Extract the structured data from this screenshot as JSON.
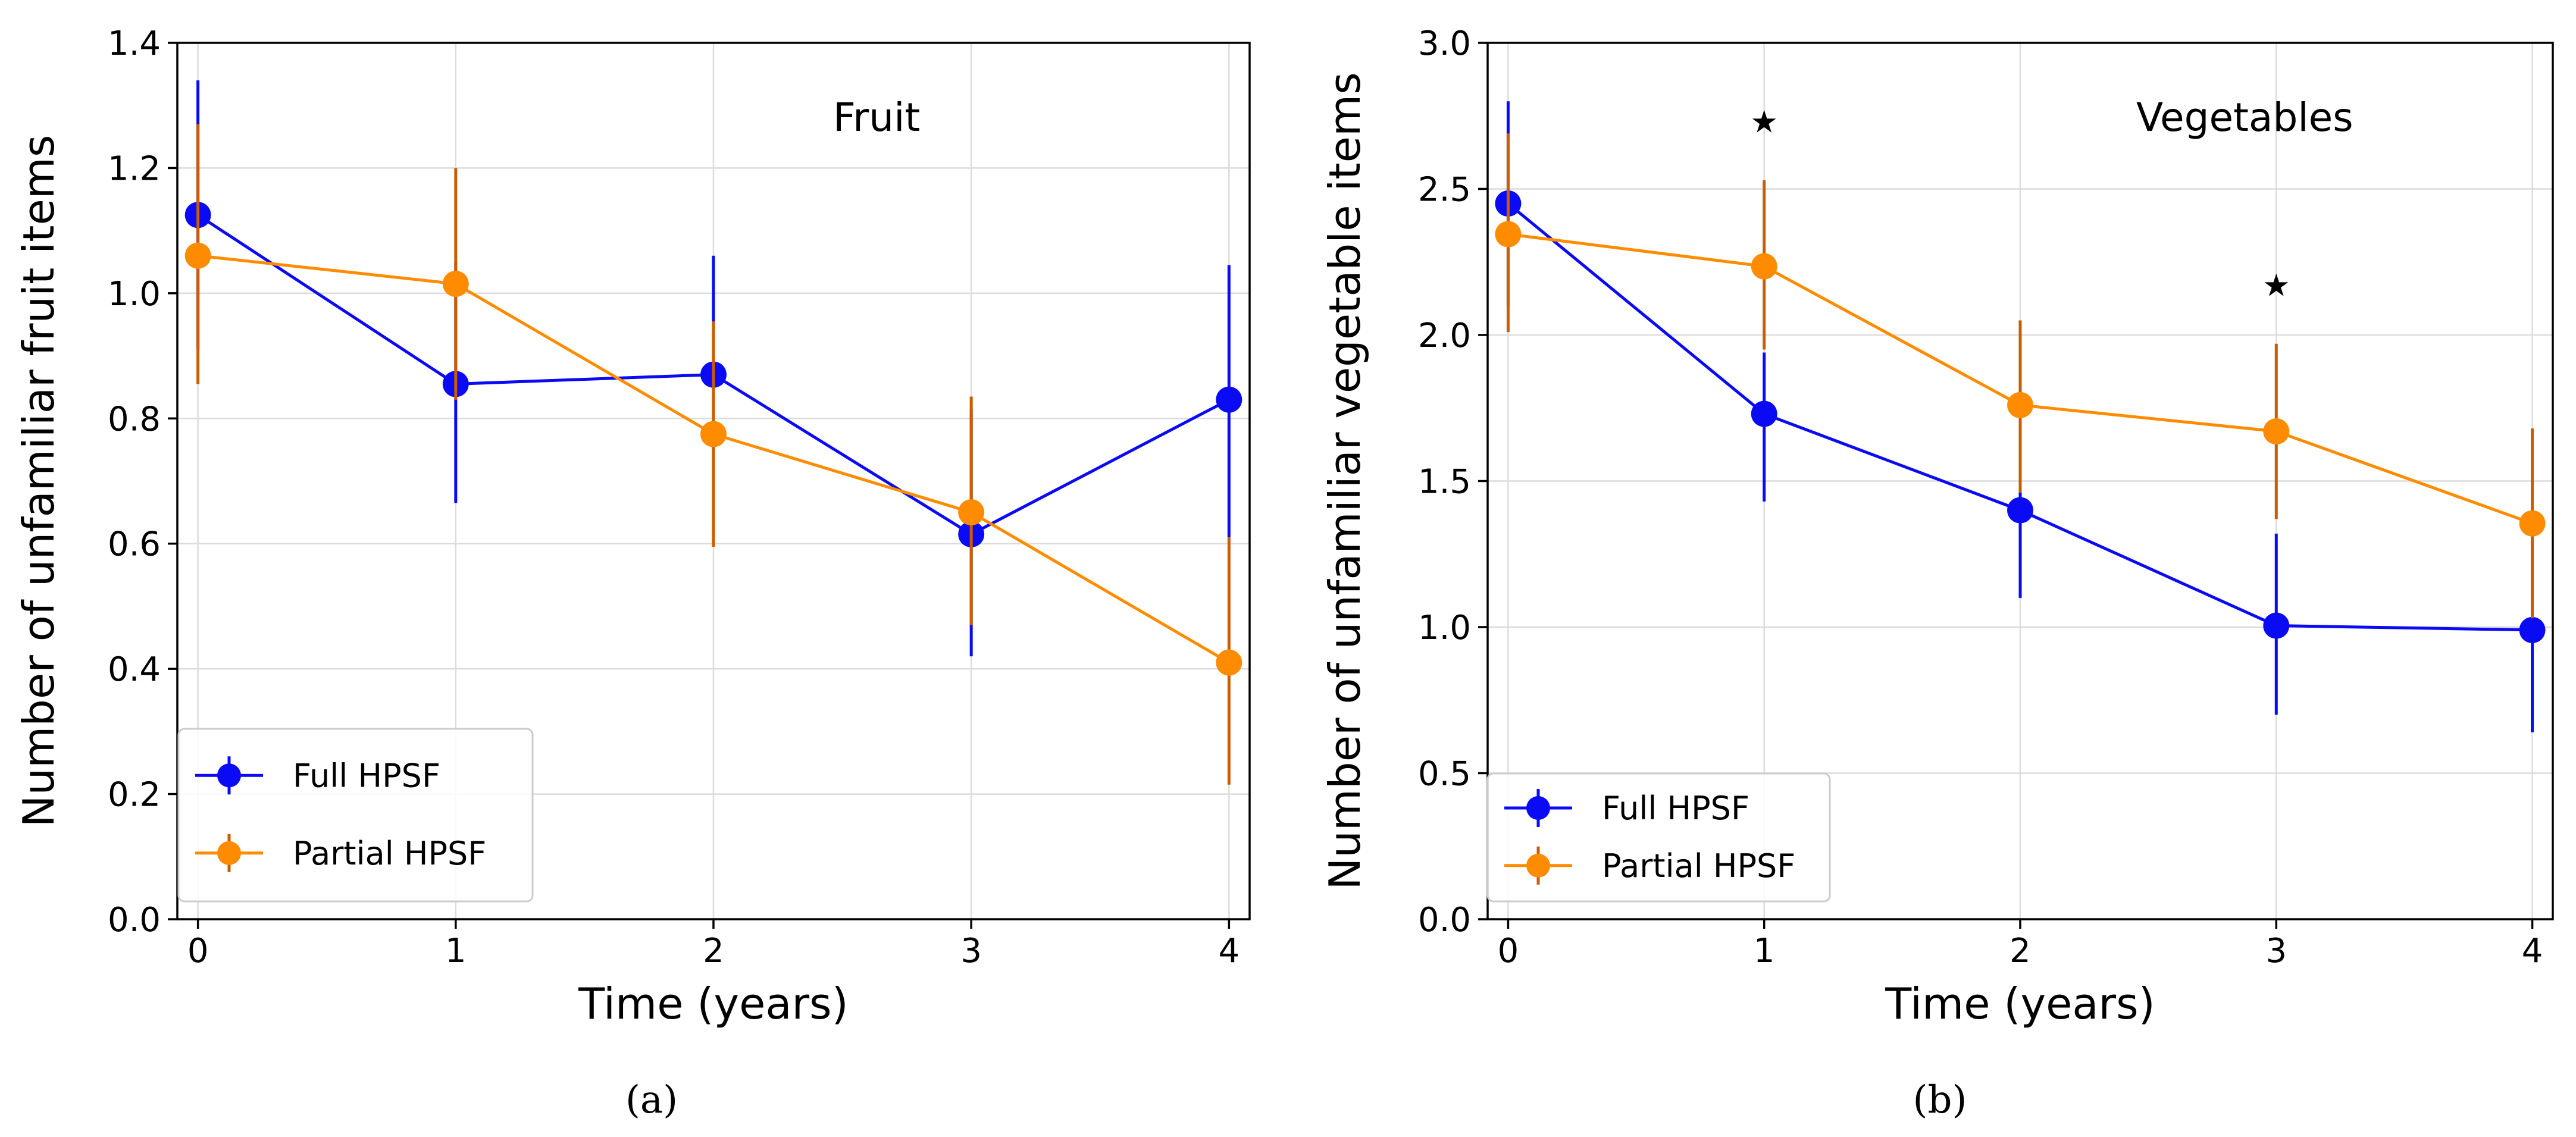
{
  "colors": {
    "full": "#0a0af5",
    "partial": "#ff8c00",
    "partial_errorbar": "#cc5c00",
    "marker": "#000000"
  },
  "sublabels": [
    "(a)",
    "(b)"
  ],
  "chart_data": [
    {
      "type": "line",
      "panel": "a",
      "title": "Fruit",
      "xlabel": "Time (years)",
      "ylabel": "Number of unfamiliar fruit items",
      "xlim": [
        -0.08,
        4.08
      ],
      "ylim": [
        0.0,
        1.4
      ],
      "xticks": [
        0,
        1,
        2,
        3,
        4
      ],
      "xtick_labels": [
        "0",
        "1",
        "2",
        "3",
        "4"
      ],
      "yticks": [
        0.0,
        0.2,
        0.4,
        0.6,
        0.8,
        1.0,
        1.2,
        1.4
      ],
      "ytick_labels": [
        "0.0",
        "0.2",
        "0.4",
        "0.6",
        "0.8",
        "1.0",
        "1.2",
        "1.4"
      ],
      "grid": true,
      "legend_position": "lower-left",
      "significance_markers": [],
      "series": [
        {
          "name": "Full HPSF",
          "color_key": "full",
          "x": [
            0,
            1,
            2,
            3,
            4
          ],
          "values": [
            1.125,
            0.855,
            0.87,
            0.615,
            0.83
          ],
          "err_low": [
            0.91,
            0.665,
            0.68,
            0.42,
            0.61
          ],
          "err_high": [
            1.34,
            1.05,
            1.06,
            0.815,
            1.045
          ]
        },
        {
          "name": "Partial HPSF",
          "color_key": "partial",
          "x": [
            0,
            1,
            2,
            3,
            4
          ],
          "values": [
            1.06,
            1.015,
            0.775,
            0.65,
            0.41
          ],
          "err_low": [
            0.855,
            0.83,
            0.595,
            0.47,
            0.215
          ],
          "err_high": [
            1.27,
            1.2,
            0.955,
            0.835,
            0.61
          ]
        }
      ]
    },
    {
      "type": "line",
      "panel": "b",
      "title": "Vegetables",
      "xlabel": "Time (years)",
      "ylabel": "Number of unfamiliar vegetable items",
      "xlim": [
        -0.08,
        4.08
      ],
      "ylim": [
        0.0,
        3.0
      ],
      "xticks": [
        0,
        1,
        2,
        3,
        4
      ],
      "xtick_labels": [
        "0",
        "1",
        "2",
        "3",
        "4"
      ],
      "yticks": [
        0.0,
        0.5,
        1.0,
        1.5,
        2.0,
        2.5,
        3.0
      ],
      "ytick_labels": [
        "0.0",
        "0.5",
        "1.0",
        "1.5",
        "2.0",
        "2.5",
        "3.0"
      ],
      "grid": true,
      "legend_position": "lower-left",
      "significance_markers": [
        {
          "x": 1,
          "y": 2.73
        },
        {
          "x": 3,
          "y": 2.17
        }
      ],
      "series": [
        {
          "name": "Full HPSF",
          "color_key": "full",
          "x": [
            0,
            1,
            2,
            3,
            4
          ],
          "values": [
            2.45,
            1.73,
            1.4,
            1.005,
            0.99
          ],
          "err_low": [
            2.1,
            1.43,
            1.1,
            0.7,
            0.64
          ],
          "err_high": [
            2.8,
            1.94,
            1.7,
            1.32,
            1.35
          ]
        },
        {
          "name": "Partial HPSF",
          "color_key": "partial",
          "x": [
            0,
            1,
            2,
            3,
            4
          ],
          "values": [
            2.345,
            2.235,
            1.76,
            1.67,
            1.355
          ],
          "err_low": [
            2.01,
            1.95,
            1.46,
            1.37,
            1.03
          ],
          "err_high": [
            2.69,
            2.53,
            2.05,
            1.97,
            1.68
          ]
        }
      ]
    }
  ]
}
